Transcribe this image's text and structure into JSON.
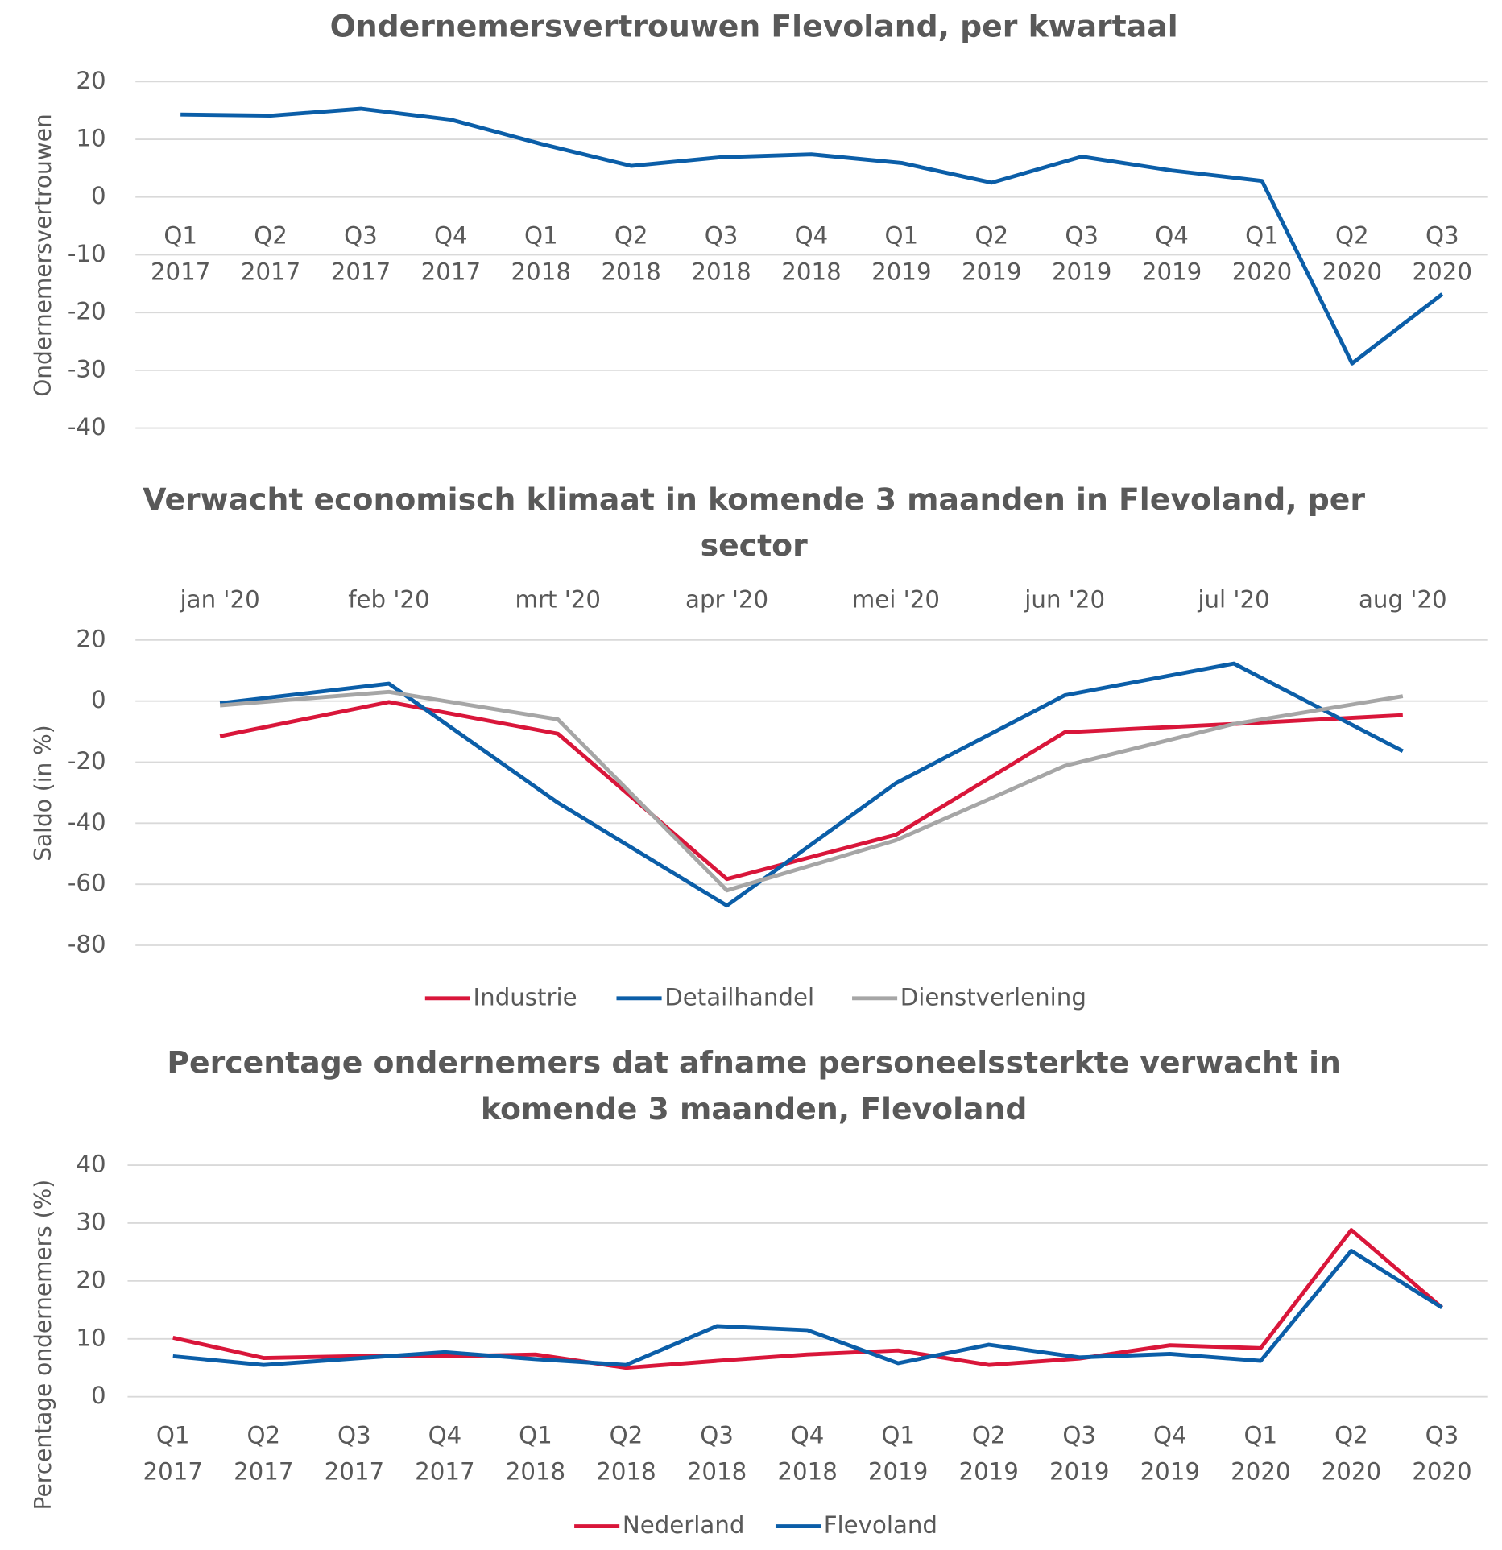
{
  "chart_data": [
    {
      "type": "line",
      "title": "Ondernemersvertrouwen Flevoland, per kwartaal",
      "ylabel": "Ondernemersvertrouwen",
      "categories": [
        "Q1 2017",
        "Q2 2017",
        "Q3 2017",
        "Q4 2017",
        "Q1 2018",
        "Q2 2018",
        "Q3 2018",
        "Q4 2018",
        "Q1 2019",
        "Q2 2019",
        "Q3 2019",
        "Q4 2019",
        "Q1 2020",
        "Q2 2020",
        "Q3 2020"
      ],
      "series": [
        {
          "color": "#0b5ea8",
          "values": [
            14.3,
            14.1,
            15.3,
            13.4,
            9.2,
            5.4,
            6.9,
            7.4,
            5.9,
            2.5,
            7.0,
            4.6,
            2.8,
            -28.8,
            -16.8
          ]
        }
      ],
      "ylim": [
        -40,
        20
      ],
      "yticks": [
        -40,
        -30,
        -20,
        -10,
        0,
        10,
        20
      ],
      "grid": true,
      "xlabel_position": "axis"
    },
    {
      "type": "line",
      "title": "Verwacht economisch klimaat in komende 3 maanden in Flevoland, per sector",
      "ylabel": "Saldo (in %)",
      "categories": [
        "jan '20",
        "feb '20",
        "mrt '20",
        "apr '20",
        "mei '20",
        "jun '20",
        "jul '20",
        "aug '20"
      ],
      "series": [
        {
          "name": "Industrie",
          "color": "#d9163a",
          "values": [
            -11.5,
            -0.3,
            -10.7,
            -58.3,
            -43.8,
            -10.2,
            -7.5,
            -4.6
          ]
        },
        {
          "name": "Detailhandel",
          "color": "#0b5ea8",
          "values": [
            -0.7,
            5.7,
            -33.3,
            -67,
            -26.9,
            1.9,
            12.3,
            -16.4
          ]
        },
        {
          "name": "Dienstverlening",
          "color": "#a6a6a6",
          "values": [
            -1.4,
            3.0,
            -6.0,
            -62,
            -45.6,
            -21.2,
            -7.5,
            1.6
          ]
        }
      ],
      "ylim": [
        -80,
        20
      ],
      "yticks": [
        -80,
        -60,
        -40,
        -20,
        0,
        20
      ],
      "grid": true,
      "xlabel_position": "top",
      "legend": "bottom"
    },
    {
      "type": "line",
      "title": "Percentage ondernemers dat afname personeelssterkte verwacht in komende 3 maanden, Flevoland",
      "ylabel": "Percentage ondernemers (%)",
      "categories": [
        "Q1 2017",
        "Q2 2017",
        "Q3 2017",
        "Q4 2017",
        "Q1 2018",
        "Q2 2018",
        "Q3 2018",
        "Q4 2018",
        "Q1 2019",
        "Q2 2019",
        "Q3 2019",
        "Q4 2019",
        "Q1 2020",
        "Q2 2020",
        "Q3 2020"
      ],
      "series": [
        {
          "name": "Nederland",
          "color": "#d9163a",
          "values": [
            10.2,
            6.7,
            7.0,
            7.0,
            7.3,
            5.0,
            6.2,
            7.3,
            8.0,
            5.5,
            6.6,
            8.9,
            8.4,
            28.8,
            15.4
          ]
        },
        {
          "name": "Flevoland",
          "color": "#0b5ea8",
          "values": [
            7.0,
            5.5,
            6.6,
            7.7,
            6.5,
            5.5,
            12.2,
            11.5,
            5.8,
            9.0,
            6.8,
            7.4,
            6.2,
            25.2,
            15.4
          ]
        }
      ],
      "ylim": [
        0,
        40
      ],
      "yticks": [
        0,
        10,
        20,
        30,
        40
      ],
      "grid": true,
      "xlabel_position": "axis",
      "legend": "bottom"
    }
  ]
}
